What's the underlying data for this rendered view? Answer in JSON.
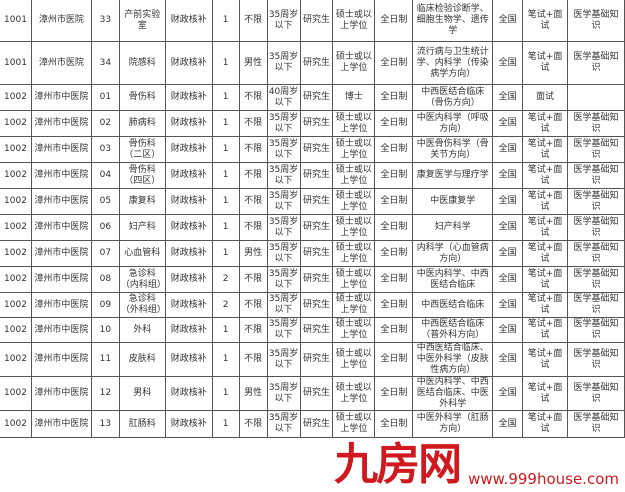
{
  "rows": [
    {
      "code": "1001",
      "hospital": "漳州市医院",
      "post": "33",
      "dept": "产前实验室",
      "funding": "财政核补",
      "count": "1",
      "gender": "不限",
      "age": "35周岁以下",
      "education": "研究生",
      "degree": "硕士或以上学位",
      "mode": "全日制",
      "major": "临床检验诊断学、细胞生物学、遗传学",
      "scope": "全国",
      "exam": "笔试+面试",
      "subject": "医学基础知识"
    },
    {
      "code": "1001",
      "hospital": "漳州市医院",
      "post": "34",
      "dept": "院感科",
      "funding": "财政核补",
      "count": "1",
      "gender": "男性",
      "age": "35周岁以下",
      "education": "研究生",
      "degree": "硕士或以上学位",
      "mode": "全日制",
      "major": "流行病与卫生统计学、内科学（传染病学方向）",
      "scope": "全国",
      "exam": "笔试+面试",
      "subject": "医学基础知识"
    },
    {
      "code": "1002",
      "hospital": "漳州市中医院",
      "post": "01",
      "dept": "骨伤科",
      "funding": "财政核补",
      "count": "1",
      "gender": "不限",
      "age": "40周岁以下",
      "education": "研究生",
      "degree": "博士",
      "mode": "全日制",
      "major": "中西医结合临床（骨伤方向）",
      "scope": "全国",
      "exam": "面试",
      "subject": ""
    },
    {
      "code": "1002",
      "hospital": "漳州市中医院",
      "post": "02",
      "dept": "肺病科",
      "funding": "财政核补",
      "count": "1",
      "gender": "不限",
      "age": "35周岁以下",
      "education": "研究生",
      "degree": "硕士或以上学位",
      "mode": "全日制",
      "major": "中医内科学（呼吸方向）",
      "scope": "全国",
      "exam": "笔试+面试",
      "subject": "医学基础知识"
    },
    {
      "code": "1002",
      "hospital": "漳州市中医院",
      "post": "03",
      "dept": "骨伤科（二区）",
      "funding": "财政核补",
      "count": "1",
      "gender": "不限",
      "age": "35周岁以下",
      "education": "研究生",
      "degree": "硕士或以上学位",
      "mode": "全日制",
      "major": "中医骨伤科学（骨关节方向）",
      "scope": "全国",
      "exam": "笔试+面试",
      "subject": "医学基础知识"
    },
    {
      "code": "1002",
      "hospital": "漳州市中医院",
      "post": "04",
      "dept": "骨伤科（四区）",
      "funding": "财政核补",
      "count": "1",
      "gender": "不限",
      "age": "35周岁以下",
      "education": "研究生",
      "degree": "硕士或以上学位",
      "mode": "全日制",
      "major": "康复医学与理疗学",
      "scope": "全国",
      "exam": "笔试+面试",
      "subject": "医学基础知识"
    },
    {
      "code": "1002",
      "hospital": "漳州市中医院",
      "post": "05",
      "dept": "康复科",
      "funding": "财政核补",
      "count": "1",
      "gender": "不限",
      "age": "35周岁以下",
      "education": "研究生",
      "degree": "硕士或以上学位",
      "mode": "全日制",
      "major": "中医康复学",
      "scope": "全国",
      "exam": "笔试+面试",
      "subject": "医学基础知识"
    },
    {
      "code": "1002",
      "hospital": "漳州市中医院",
      "post": "06",
      "dept": "妇产科",
      "funding": "财政核补",
      "count": "1",
      "gender": "不限",
      "age": "35周岁以下",
      "education": "研究生",
      "degree": "硕士或以上学位",
      "mode": "全日制",
      "major": "妇产科学",
      "scope": "全国",
      "exam": "笔试+面试",
      "subject": "医学基础知识"
    },
    {
      "code": "1002",
      "hospital": "漳州市中医院",
      "post": "07",
      "dept": "心血管科",
      "funding": "财政核补",
      "count": "1",
      "gender": "男性",
      "age": "35周岁以下",
      "education": "研究生",
      "degree": "硕士或以上学位",
      "mode": "全日制",
      "major": "内科学（心血管病方向）",
      "scope": "全国",
      "exam": "笔试+面试",
      "subject": "医学基础知识"
    },
    {
      "code": "1002",
      "hospital": "漳州市中医院",
      "post": "08",
      "dept": "急诊科（内科组）",
      "funding": "财政核补",
      "count": "2",
      "gender": "不限",
      "age": "35周岁以下",
      "education": "研究生",
      "degree": "硕士或以上学位",
      "mode": "全日制",
      "major": "中医内科学、中西医结合临床",
      "scope": "全国",
      "exam": "笔试+面试",
      "subject": "医学基础知识"
    },
    {
      "code": "1002",
      "hospital": "漳州市中医院",
      "post": "09",
      "dept": "急诊科（外科组）",
      "funding": "财政核补",
      "count": "2",
      "gender": "不限",
      "age": "35周岁以下",
      "education": "研究生",
      "degree": "硕士或以上学位",
      "mode": "全日制",
      "major": "中西医结合临床",
      "scope": "全国",
      "exam": "笔试+面试",
      "subject": "医学基础知识"
    },
    {
      "code": "1002",
      "hospital": "漳州市中医院",
      "post": "10",
      "dept": "外科",
      "funding": "财政核补",
      "count": "1",
      "gender": "不限",
      "age": "35周岁以下",
      "education": "研究生",
      "degree": "硕士或以上学位",
      "mode": "全日制",
      "major": "中西医结合临床（普外科方向）",
      "scope": "全国",
      "exam": "笔试+面试",
      "subject": "医学基础知识"
    },
    {
      "code": "1002",
      "hospital": "漳州市中医院",
      "post": "11",
      "dept": "皮肤科",
      "funding": "财政核补",
      "count": "1",
      "gender": "不限",
      "age": "35周岁以下",
      "education": "研究生",
      "degree": "硕士或以上学位",
      "mode": "全日制",
      "major": "中西医结合临床、中医外科学（皮肤性病方向）",
      "scope": "全国",
      "exam": "笔试+面试",
      "subject": "医学基础知识"
    },
    {
      "code": "1002",
      "hospital": "漳州市中医院",
      "post": "12",
      "dept": "男科",
      "funding": "财政核补",
      "count": "1",
      "gender": "男性",
      "age": "35周岁以下",
      "education": "研究生",
      "degree": "硕士或以上学位",
      "mode": "全日制",
      "major": "中医内科学、中西医结合临床、中医外科学",
      "scope": "全国",
      "exam": "笔试+面试",
      "subject": "医学基础知识"
    },
    {
      "code": "1002",
      "hospital": "漳州市中医院",
      "post": "13",
      "dept": "肛肠科",
      "funding": "财政核补",
      "count": "1",
      "gender": "不限",
      "age": "35周岁以下",
      "education": "研究生",
      "degree": "硕士或以上学位",
      "mode": "全日制",
      "major": "中医外科学（肛肠方向）",
      "scope": "全国",
      "exam": "笔试+面试",
      "subject": "医学基础知识"
    }
  ],
  "watermark": {
    "logo_text": "九房网",
    "url": "www.999house.com",
    "color": "#d0191f"
  }
}
